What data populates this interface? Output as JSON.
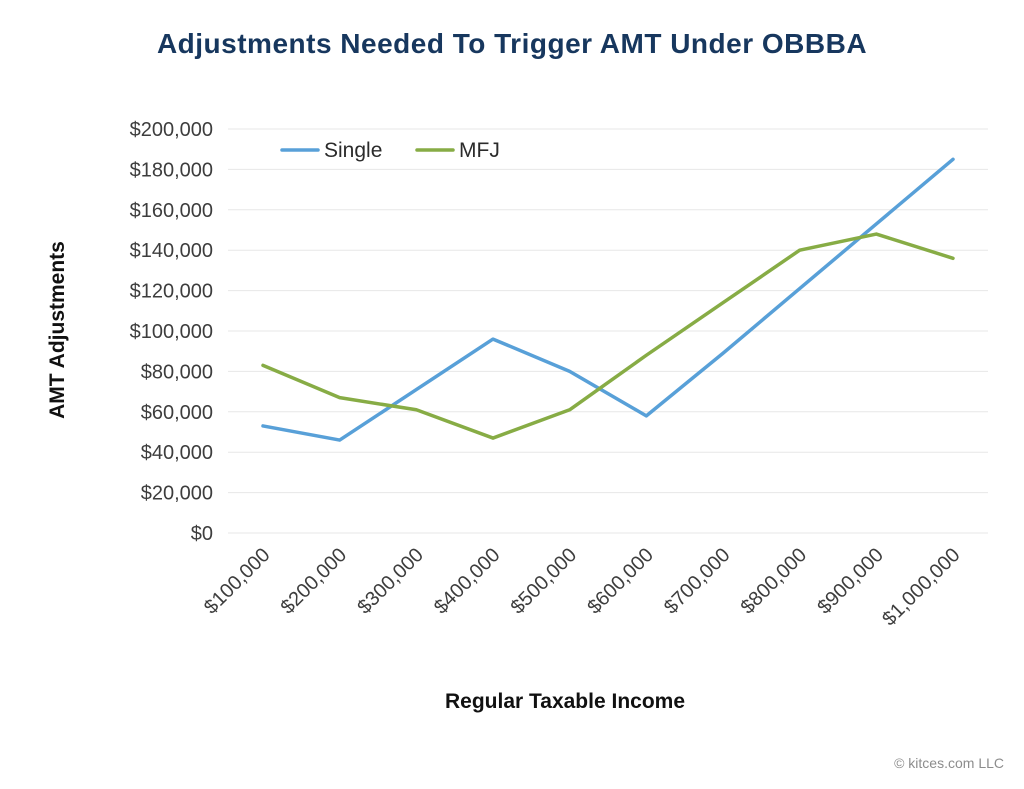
{
  "page": {
    "footer": "© kitces.com LLC"
  },
  "chart_data": {
    "type": "line",
    "title": "Adjustments Needed To Trigger AMT Under OBBBA",
    "xlabel": "Regular Taxable Income",
    "ylabel": "AMT Adjustments",
    "categories": [
      "$100,000",
      "$200,000",
      "$300,000",
      "$400,000",
      "$500,000",
      "$600,000",
      "$700,000",
      "$800,000",
      "$900,000",
      "$1,000,000"
    ],
    "x_values": [
      100000,
      200000,
      300000,
      400000,
      500000,
      600000,
      700000,
      800000,
      900000,
      1000000
    ],
    "series": [
      {
        "name": "Single",
        "color": "#58A0D8",
        "values": [
          53000,
          46000,
          71000,
          96000,
          80000,
          58000,
          89000,
          121000,
          153000,
          185000
        ]
      },
      {
        "name": "MFJ",
        "color": "#87AC45",
        "values": [
          83000,
          67000,
          61000,
          47000,
          61000,
          88000,
          114000,
          140000,
          148000,
          136000
        ]
      }
    ],
    "ylim": [
      0,
      200000
    ],
    "y_tick_step": 20000,
    "y_tick_labels": [
      "$0",
      "$20,000",
      "$40,000",
      "$60,000",
      "$80,000",
      "$100,000",
      "$120,000",
      "$140,000",
      "$160,000",
      "$180,000",
      "$200,000"
    ],
    "grid": "horizontal",
    "legend_position": "top-left-inside",
    "colors": {
      "title": "#17375E",
      "tick_label": "#3D3D3D",
      "legend_label": "#2B2B2B",
      "gridline": "#E7E7E7"
    }
  }
}
